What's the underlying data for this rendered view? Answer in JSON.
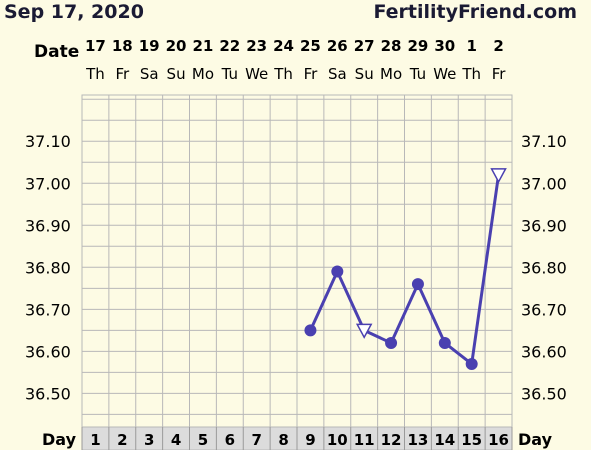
{
  "header": {
    "title": "Sep 17, 2020",
    "site": "FertilityFriend.com"
  },
  "colors": {
    "background": "#fdfbe4",
    "grid": "#b8b8b8",
    "line": "#4a40b0",
    "day_cell": "#dcdcdc"
  },
  "chart_data": {
    "type": "line",
    "date_row_label": "Date",
    "day_row_label": "Day",
    "dates": [
      "17",
      "18",
      "19",
      "20",
      "21",
      "22",
      "23",
      "24",
      "25",
      "26",
      "27",
      "28",
      "29",
      "30",
      "1",
      "2"
    ],
    "weekdays": [
      "Th",
      "Fr",
      "Sa",
      "Su",
      "Mo",
      "Tu",
      "We",
      "Th",
      "Fr",
      "Sa",
      "Su",
      "Mo",
      "Tu",
      "We",
      "Th",
      "Fr"
    ],
    "days": [
      1,
      2,
      3,
      4,
      5,
      6,
      7,
      8,
      9,
      10,
      11,
      12,
      13,
      14,
      15,
      16
    ],
    "yticks": [
      "37.10",
      "37.00",
      "36.90",
      "36.80",
      "36.70",
      "36.60",
      "36.50"
    ],
    "ylim": [
      36.42,
      37.21
    ],
    "ystep": 0.05,
    "grid": true,
    "series": [
      {
        "points": [
          {
            "day": 9,
            "temp": 36.65,
            "marker": "circle"
          },
          {
            "day": 10,
            "temp": 36.79,
            "marker": "circle"
          },
          {
            "day": 11,
            "temp": 36.65,
            "marker": "triangle-open"
          },
          {
            "day": 12,
            "temp": 36.62,
            "marker": "circle"
          },
          {
            "day": 13,
            "temp": 36.76,
            "marker": "circle"
          },
          {
            "day": 14,
            "temp": 36.62,
            "marker": "circle"
          },
          {
            "day": 15,
            "temp": 36.57,
            "marker": "circle"
          },
          {
            "day": 16,
            "temp": 37.02,
            "marker": "triangle-open"
          }
        ]
      }
    ]
  }
}
